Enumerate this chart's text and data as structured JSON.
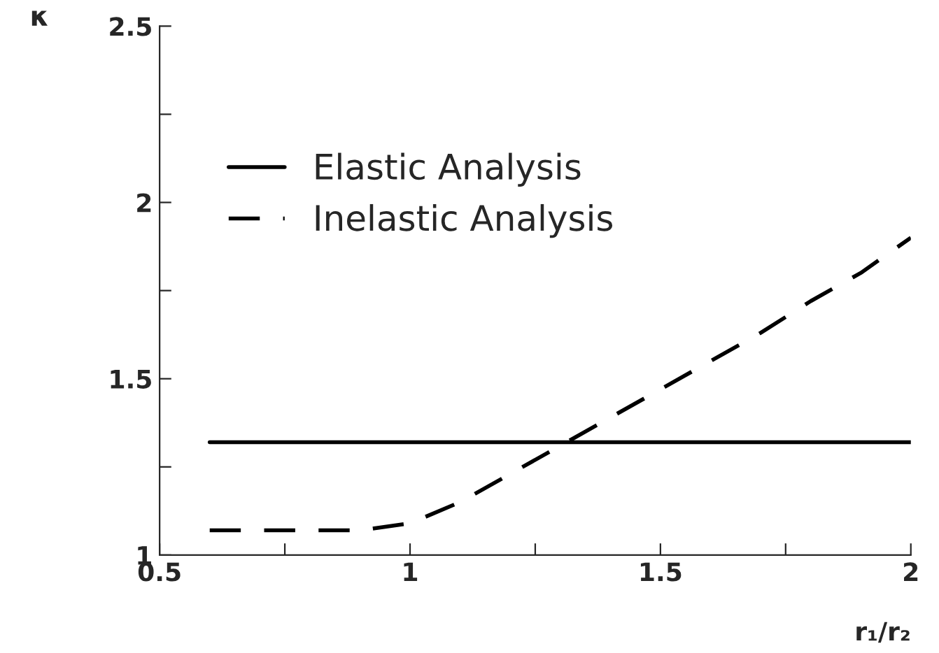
{
  "chart_data": {
    "type": "line",
    "xlabel": "r₁/r₂",
    "ylabel": "κ",
    "xlim": [
      0.5,
      2
    ],
    "ylim": [
      1,
      2.5
    ],
    "xticks": [
      0.5,
      {
        "value": 0.75,
        "label": null
      },
      1,
      {
        "value": 1.25,
        "label": null
      },
      1.5,
      {
        "value": 1.75,
        "label": null
      },
      2
    ],
    "yticks": [
      1,
      {
        "value": 1.25,
        "label": null
      },
      1.5,
      {
        "value": 1.75,
        "label": null
      },
      2,
      {
        "value": 2.25,
        "label": null
      },
      2.5
    ],
    "grid": false,
    "legend": "top left",
    "marker": "none",
    "series": [
      {
        "name": "Elastic Analysis",
        "color": "#000000",
        "line_style": "solid",
        "x": [
          0.6,
          2.0
        ],
        "values": [
          1.32,
          1.32
        ]
      },
      {
        "name": "Inelastic Analysis",
        "color": "#000000",
        "line_style": "dashed",
        "x": [
          0.6,
          0.7,
          0.8,
          0.9,
          1.0,
          1.1,
          1.2,
          1.3,
          1.4,
          1.5,
          1.6,
          1.7,
          1.8,
          1.9,
          2.0
        ],
        "values": [
          1.07,
          1.07,
          1.07,
          1.07,
          1.09,
          1.15,
          1.23,
          1.31,
          1.39,
          1.47,
          1.55,
          1.63,
          1.72,
          1.8,
          1.9
        ]
      }
    ]
  }
}
